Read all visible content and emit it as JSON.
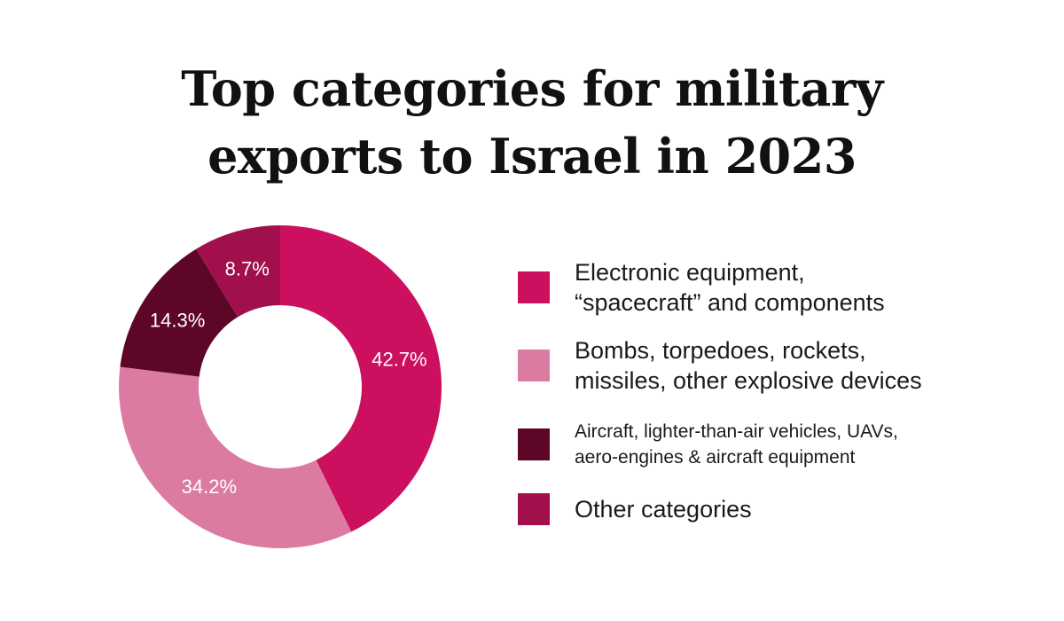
{
  "title": {
    "line1": "Top categories for military",
    "line2": "exports to Israel in 2023"
  },
  "chart_data": {
    "type": "pie",
    "donut": true,
    "title": "Top categories for military exports to Israel in 2023",
    "legend_position": "right",
    "categories": [
      "Electronic equipment, “spacecraft” and components",
      "Bombs, torpedoes, rockets, missiles, other explosive devices",
      "Aircraft, lighter-than-air vehicles, UAVs, aero-engines & aircraft equipment",
      "Other categories"
    ],
    "values": [
      42.7,
      34.2,
      14.3,
      8.7
    ],
    "labels": [
      "42.7%",
      "34.2%",
      "14.3%",
      "8.7%"
    ],
    "colors": [
      "#CC0F5E",
      "#DC7BA2",
      "#5D0628",
      "#A10F4C"
    ]
  },
  "legend": {
    "items": [
      {
        "line1": "Electronic equipment,",
        "line2": "“spacecraft” and components"
      },
      {
        "line1": "Bombs, torpedoes, rockets,",
        "line2": "missiles, other explosive devices"
      },
      {
        "line1": "Aircraft, lighter-than-air vehicles, UAVs,",
        "line2": "aero-engines & aircraft equipment"
      },
      {
        "line1": "Other categories",
        "line2": ""
      }
    ]
  }
}
